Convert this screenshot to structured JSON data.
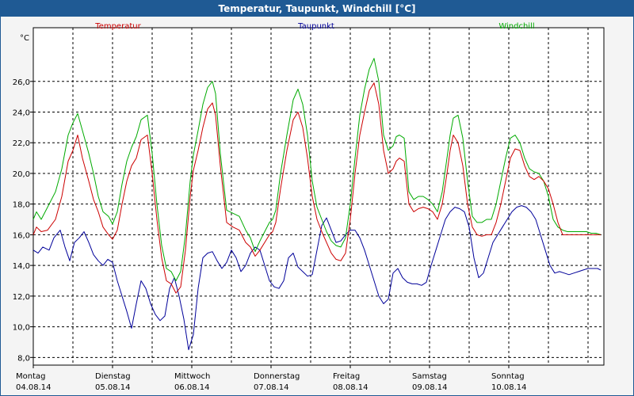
{
  "window": {
    "title": "Temperatur, Taupunkt, Windchill [°C]"
  },
  "chart_data": {
    "type": "line",
    "title": "Temperatur, Taupunkt, Windchill [°C]",
    "ylabel": "°C",
    "ylim": [
      7.5,
      29.5
    ],
    "yticks": [
      8,
      10,
      12,
      14,
      16,
      18,
      20,
      22,
      24,
      26
    ],
    "ytick_labels": [
      "8,0",
      "10,0",
      "12,0",
      "14,0",
      "16,0",
      "18,0",
      "20,0",
      "22,0",
      "24,0",
      "26,0"
    ],
    "xlim": [
      0,
      7.2
    ],
    "days": [
      {
        "weekday": "Montag",
        "date": "04.08.14"
      },
      {
        "weekday": "Dienstag",
        "date": "05.08.14"
      },
      {
        "weekday": "Mittwoch",
        "date": "06.08.14"
      },
      {
        "weekday": "Donnerstag",
        "date": "07.08.14"
      },
      {
        "weekday": "Freitag",
        "date": "08.08.14"
      },
      {
        "weekday": "Samstag",
        "date": "09.08.14"
      },
      {
        "weekday": "Sonntag",
        "date": "10.08.14"
      }
    ],
    "grid": true,
    "series": [
      {
        "name": "Temperatur",
        "color": "#cc0000",
        "x": [
          0,
          0.04,
          0.1,
          0.18,
          0.28,
          0.36,
          0.44,
          0.5,
          0.56,
          0.62,
          0.7,
          0.76,
          0.82,
          0.88,
          0.95,
          1.0,
          1.06,
          1.12,
          1.18,
          1.24,
          1.3,
          1.36,
          1.44,
          1.5,
          1.56,
          1.62,
          1.68,
          1.74,
          1.8,
          1.86,
          1.92,
          1.98,
          2.02,
          2.08,
          2.14,
          2.2,
          2.26,
          2.3,
          2.36,
          2.44,
          2.52,
          2.6,
          2.68,
          2.74,
          2.8,
          2.86,
          2.92,
          2.98,
          3.02,
          3.06,
          3.12,
          3.2,
          3.28,
          3.34,
          3.4,
          3.46,
          3.52,
          3.58,
          3.64,
          3.7,
          3.76,
          3.82,
          3.88,
          3.94,
          4.0,
          4.06,
          4.12,
          4.18,
          4.24,
          4.3,
          4.36,
          4.42,
          4.48,
          4.54,
          4.58,
          4.62,
          4.68,
          4.74,
          4.8,
          4.86,
          4.92,
          4.98,
          5.04,
          5.1,
          5.16,
          5.22,
          5.26,
          5.3,
          5.36,
          5.42,
          5.48,
          5.54,
          5.6,
          5.66,
          5.72,
          5.78,
          5.84,
          5.9,
          5.96,
          6.02,
          6.08,
          6.14,
          6.2,
          6.26,
          6.32,
          6.38,
          6.44,
          6.5,
          6.56,
          6.62,
          6.68,
          6.74,
          6.8,
          6.86,
          6.92,
          6.98,
          7.04,
          7.1,
          7.16
        ],
        "values": [
          16.0,
          16.5,
          16.2,
          16.3,
          17.0,
          18.5,
          20.8,
          21.5,
          22.5,
          21.0,
          19.5,
          18.3,
          17.5,
          16.5,
          16.0,
          15.7,
          16.3,
          18.0,
          19.5,
          20.5,
          21.0,
          22.2,
          22.5,
          20.0,
          17.0,
          14.5,
          13.0,
          12.8,
          12.2,
          12.6,
          15.0,
          18.5,
          20.2,
          21.5,
          23.0,
          24.2,
          24.6,
          23.8,
          20.5,
          16.8,
          16.5,
          16.3,
          15.5,
          15.2,
          14.6,
          15.0,
          15.5,
          16.0,
          16.2,
          16.8,
          19.0,
          21.5,
          23.5,
          24.0,
          23.0,
          21.0,
          18.5,
          17.0,
          16.2,
          15.5,
          14.8,
          14.4,
          14.3,
          14.8,
          17.0,
          20.0,
          22.5,
          24.0,
          25.4,
          25.9,
          24.5,
          21.5,
          20.0,
          20.3,
          20.8,
          21.0,
          20.8,
          18.0,
          17.5,
          17.7,
          17.8,
          17.7,
          17.5,
          17.0,
          18.0,
          20.0,
          21.5,
          22.5,
          22.0,
          20.5,
          18.0,
          16.5,
          16.0,
          15.9,
          16.0,
          16.0,
          16.8,
          18.0,
          19.5,
          21.0,
          21.6,
          21.5,
          20.5,
          19.8,
          19.6,
          19.8,
          19.5,
          19.0,
          18.0,
          16.8,
          16.0,
          16.0,
          16.0,
          16.0,
          16.0,
          16.0,
          16.0,
          16.0,
          16.0
        ]
      },
      {
        "name": "Taupunkt",
        "color": "#000099",
        "x": [
          0,
          0.06,
          0.12,
          0.2,
          0.26,
          0.34,
          0.4,
          0.46,
          0.52,
          0.58,
          0.64,
          0.7,
          0.76,
          0.82,
          0.88,
          0.94,
          1.0,
          1.06,
          1.12,
          1.18,
          1.24,
          1.3,
          1.36,
          1.42,
          1.48,
          1.54,
          1.6,
          1.66,
          1.72,
          1.78,
          1.84,
          1.9,
          1.96,
          2.02,
          2.08,
          2.14,
          2.2,
          2.26,
          2.32,
          2.38,
          2.44,
          2.5,
          2.56,
          2.62,
          2.68,
          2.74,
          2.8,
          2.86,
          2.92,
          2.98,
          3.04,
          3.1,
          3.16,
          3.22,
          3.28,
          3.34,
          3.4,
          3.46,
          3.52,
          3.58,
          3.64,
          3.7,
          3.76,
          3.82,
          3.88,
          3.94,
          4.0,
          4.06,
          4.12,
          4.18,
          4.24,
          4.3,
          4.36,
          4.42,
          4.48,
          4.54,
          4.6,
          4.66,
          4.72,
          4.78,
          4.84,
          4.9,
          4.96,
          5.02,
          5.08,
          5.14,
          5.2,
          5.26,
          5.32,
          5.38,
          5.44,
          5.5,
          5.56,
          5.62,
          5.68,
          5.74,
          5.8,
          5.86,
          5.92,
          5.98,
          6.04,
          6.1,
          6.16,
          6.22,
          6.28,
          6.34,
          6.4,
          6.46,
          6.52,
          6.58,
          6.64,
          6.7,
          6.76,
          6.82,
          6.88,
          6.94,
          7.0,
          7.06,
          7.12,
          7.16
        ],
        "values": [
          15.0,
          14.8,
          15.2,
          15.0,
          15.8,
          16.3,
          15.2,
          14.3,
          15.5,
          15.8,
          16.2,
          15.5,
          14.7,
          14.3,
          14.0,
          14.4,
          14.2,
          13.0,
          12.0,
          11.0,
          9.9,
          11.5,
          13.0,
          12.5,
          11.5,
          10.8,
          10.4,
          10.7,
          12.5,
          13.2,
          12.0,
          10.5,
          8.5,
          9.5,
          12.5,
          14.5,
          14.8,
          14.9,
          14.3,
          13.8,
          14.2,
          15.0,
          14.5,
          13.6,
          14.0,
          14.8,
          15.2,
          15.0,
          14.0,
          13.0,
          12.6,
          12.5,
          13.0,
          14.5,
          14.8,
          13.9,
          13.6,
          13.3,
          13.4,
          15.0,
          16.6,
          17.1,
          16.3,
          15.5,
          15.6,
          16.0,
          16.3,
          16.3,
          15.8,
          15.0,
          14.0,
          13.0,
          12.0,
          11.5,
          11.8,
          13.5,
          13.8,
          13.2,
          12.9,
          12.8,
          12.8,
          12.7,
          12.9,
          14.0,
          15.0,
          16.0,
          17.0,
          17.5,
          17.8,
          17.7,
          17.5,
          16.5,
          14.5,
          13.2,
          13.5,
          14.5,
          15.5,
          16.0,
          16.5,
          17.0,
          17.5,
          17.8,
          17.9,
          17.8,
          17.5,
          17.0,
          16.0,
          15.0,
          14.0,
          13.5,
          13.6,
          13.5,
          13.4,
          13.5,
          13.6,
          13.7,
          13.8,
          13.8,
          13.8,
          13.7
        ]
      },
      {
        "name": "Windchill",
        "color": "#00aa00",
        "x": [
          0,
          0.04,
          0.1,
          0.18,
          0.28,
          0.36,
          0.44,
          0.5,
          0.56,
          0.62,
          0.7,
          0.76,
          0.82,
          0.88,
          0.95,
          1.0,
          1.06,
          1.12,
          1.18,
          1.24,
          1.3,
          1.36,
          1.44,
          1.5,
          1.56,
          1.62,
          1.68,
          1.74,
          1.8,
          1.86,
          1.92,
          1.98,
          2.02,
          2.08,
          2.14,
          2.2,
          2.26,
          2.3,
          2.36,
          2.44,
          2.52,
          2.6,
          2.68,
          2.74,
          2.8,
          2.86,
          2.92,
          2.98,
          3.02,
          3.06,
          3.12,
          3.2,
          3.28,
          3.34,
          3.4,
          3.46,
          3.52,
          3.58,
          3.64,
          3.7,
          3.76,
          3.82,
          3.88,
          3.94,
          4.0,
          4.06,
          4.12,
          4.18,
          4.24,
          4.3,
          4.36,
          4.42,
          4.48,
          4.54,
          4.58,
          4.62,
          4.68,
          4.74,
          4.8,
          4.86,
          4.92,
          4.98,
          5.04,
          5.1,
          5.16,
          5.22,
          5.26,
          5.3,
          5.36,
          5.42,
          5.48,
          5.54,
          5.6,
          5.66,
          5.72,
          5.78,
          5.84,
          5.9,
          5.96,
          6.02,
          6.08,
          6.14,
          6.2,
          6.26,
          6.32,
          6.38,
          6.44,
          6.5,
          6.56,
          6.62,
          6.68,
          6.74,
          6.8,
          6.86,
          6.92,
          6.98,
          7.04,
          7.1,
          7.16
        ],
        "values": [
          17.0,
          17.5,
          17.0,
          17.8,
          18.8,
          20.3,
          22.5,
          23.3,
          23.9,
          22.8,
          21.3,
          20.0,
          18.5,
          17.5,
          17.2,
          16.7,
          17.5,
          19.3,
          20.8,
          21.7,
          22.4,
          23.5,
          23.8,
          21.3,
          18.0,
          15.3,
          13.8,
          13.6,
          13.0,
          13.6,
          16.0,
          19.5,
          21.2,
          22.8,
          24.5,
          25.6,
          26.0,
          25.2,
          21.3,
          17.6,
          17.4,
          17.2,
          16.3,
          15.8,
          14.9,
          15.6,
          16.2,
          16.8,
          17.0,
          17.6,
          20.0,
          22.5,
          24.8,
          25.5,
          24.5,
          22.5,
          19.5,
          17.8,
          17.0,
          16.2,
          15.6,
          15.3,
          15.2,
          15.8,
          18.0,
          21.0,
          23.8,
          25.5,
          26.8,
          27.5,
          26.0,
          22.5,
          21.5,
          21.8,
          22.4,
          22.5,
          22.3,
          18.8,
          18.3,
          18.5,
          18.5,
          18.3,
          18.0,
          17.5,
          18.8,
          21.0,
          22.5,
          23.6,
          23.8,
          22.3,
          19.5,
          17.2,
          16.8,
          16.8,
          17.0,
          17.0,
          18.0,
          19.5,
          21.0,
          22.3,
          22.5,
          22.0,
          21.0,
          20.3,
          20.1,
          20.0,
          19.5,
          18.5,
          17.0,
          16.5,
          16.3,
          16.2,
          16.2,
          16.2,
          16.2,
          16.2,
          16.1,
          16.1,
          16.0
        ]
      }
    ]
  }
}
